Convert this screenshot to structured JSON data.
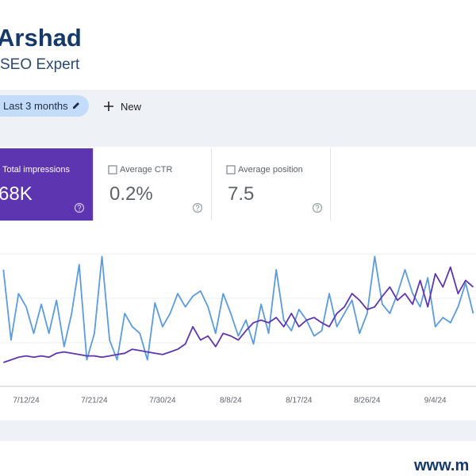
{
  "header": {
    "name": "Arshad",
    "subtitle": "SEO Expert"
  },
  "toolbar": {
    "date_filter": "Last 3 months",
    "new_button": "New"
  },
  "metrics": [
    {
      "label": "Total impressions",
      "value": "68K"
    },
    {
      "label": "Average CTR",
      "value": "0.2%"
    },
    {
      "label": "Average position",
      "value": "7.5"
    }
  ],
  "chart_data": {
    "type": "line",
    "categories": [
      null,
      null,
      null,
      "7/12/24",
      null,
      null,
      null,
      null,
      null,
      null,
      null,
      null,
      "7/21/24",
      null,
      null,
      null,
      null,
      null,
      null,
      null,
      null,
      "7/30/24",
      null,
      null,
      null,
      null,
      null,
      null,
      null,
      null,
      "8/8/24",
      null,
      null,
      null,
      null,
      null,
      null,
      null,
      null,
      "8/17/24",
      null,
      null,
      null,
      null,
      null,
      null,
      null,
      null,
      "8/26/24",
      null,
      null,
      null,
      null,
      null,
      null,
      null,
      null,
      "9/4/24",
      null,
      null,
      null,
      null,
      null
    ],
    "series": [
      {
        "color": "#5b9bdf",
        "values": [
          88,
          35,
          70,
          60,
          40,
          62,
          40,
          65,
          30,
          55,
          92,
          20,
          40,
          98,
          35,
          20,
          55,
          45,
          40,
          20,
          63,
          45,
          55,
          70,
          60,
          68,
          72,
          60,
          40,
          70,
          55,
          38,
          50,
          32,
          62,
          40,
          88,
          50,
          42,
          58,
          50,
          38,
          42,
          70,
          45,
          55,
          65,
          40,
          55,
          98,
          62,
          55,
          70,
          88,
          70,
          60,
          82,
          45,
          52,
          48,
          60,
          78,
          55
        ]
      },
      {
        "color": "#5e35b1",
        "values": [
          18,
          20,
          22,
          23,
          22,
          23,
          22,
          25,
          26,
          25,
          24,
          23,
          23,
          22,
          23,
          24,
          25,
          28,
          27,
          26,
          25,
          24,
          26,
          28,
          32,
          45,
          35,
          38,
          30,
          40,
          38,
          35,
          42,
          48,
          50,
          48,
          52,
          45,
          55,
          45,
          50,
          52,
          48,
          45,
          55,
          60,
          70,
          65,
          58,
          60,
          68,
          75,
          65,
          70,
          62,
          80,
          60,
          85,
          75,
          90,
          70,
          80,
          75
        ]
      }
    ],
    "ylim": [
      0,
      100
    ]
  },
  "footer": {
    "url": "www.m"
  }
}
